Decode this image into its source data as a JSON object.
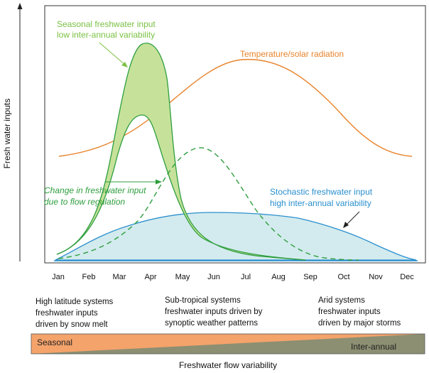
{
  "axes": {
    "y_label": "Fresh water inputs",
    "months": [
      "Jan",
      "Feb",
      "Mar",
      "Apr",
      "May",
      "Jun",
      "Jul",
      "Aug",
      "Sep",
      "Oct",
      "Nov",
      "Dec"
    ]
  },
  "annotations": {
    "seasonal": [
      "Seasonal freshwater input",
      "low inter-annual variability"
    ],
    "temperature": "Temperature/solar radiation",
    "regulation": [
      "Change in freshwater input",
      "due to flow regulation"
    ],
    "stochastic": [
      "Stochastic freshwater input",
      "high inter-annual variability"
    ]
  },
  "systems": {
    "high_latitude": [
      "High latitude systems",
      "freshwater inputs",
      "driven by snow melt"
    ],
    "sub_tropical": [
      "Sub-tropical systems",
      "freshwater inputs driven by",
      "synoptic weather patterns"
    ],
    "arid": [
      "Arid systems",
      "freshwater inputs",
      "driven by major storms"
    ]
  },
  "variability_bar": {
    "left_label": "Seasonal",
    "right_label": "Inter-annual",
    "title": "Freshwater flow variability"
  },
  "colors": {
    "seasonal": "#7ac143",
    "seasonal_fill": "#c6e29a",
    "regulation": "#2e9e3e",
    "temperature": "#e8832b",
    "stochastic": "#2a8fce",
    "stochastic_fill": "#d3ebee",
    "bar_seasonal": "#f4a36b",
    "bar_interannual": "#8c8f72"
  }
}
